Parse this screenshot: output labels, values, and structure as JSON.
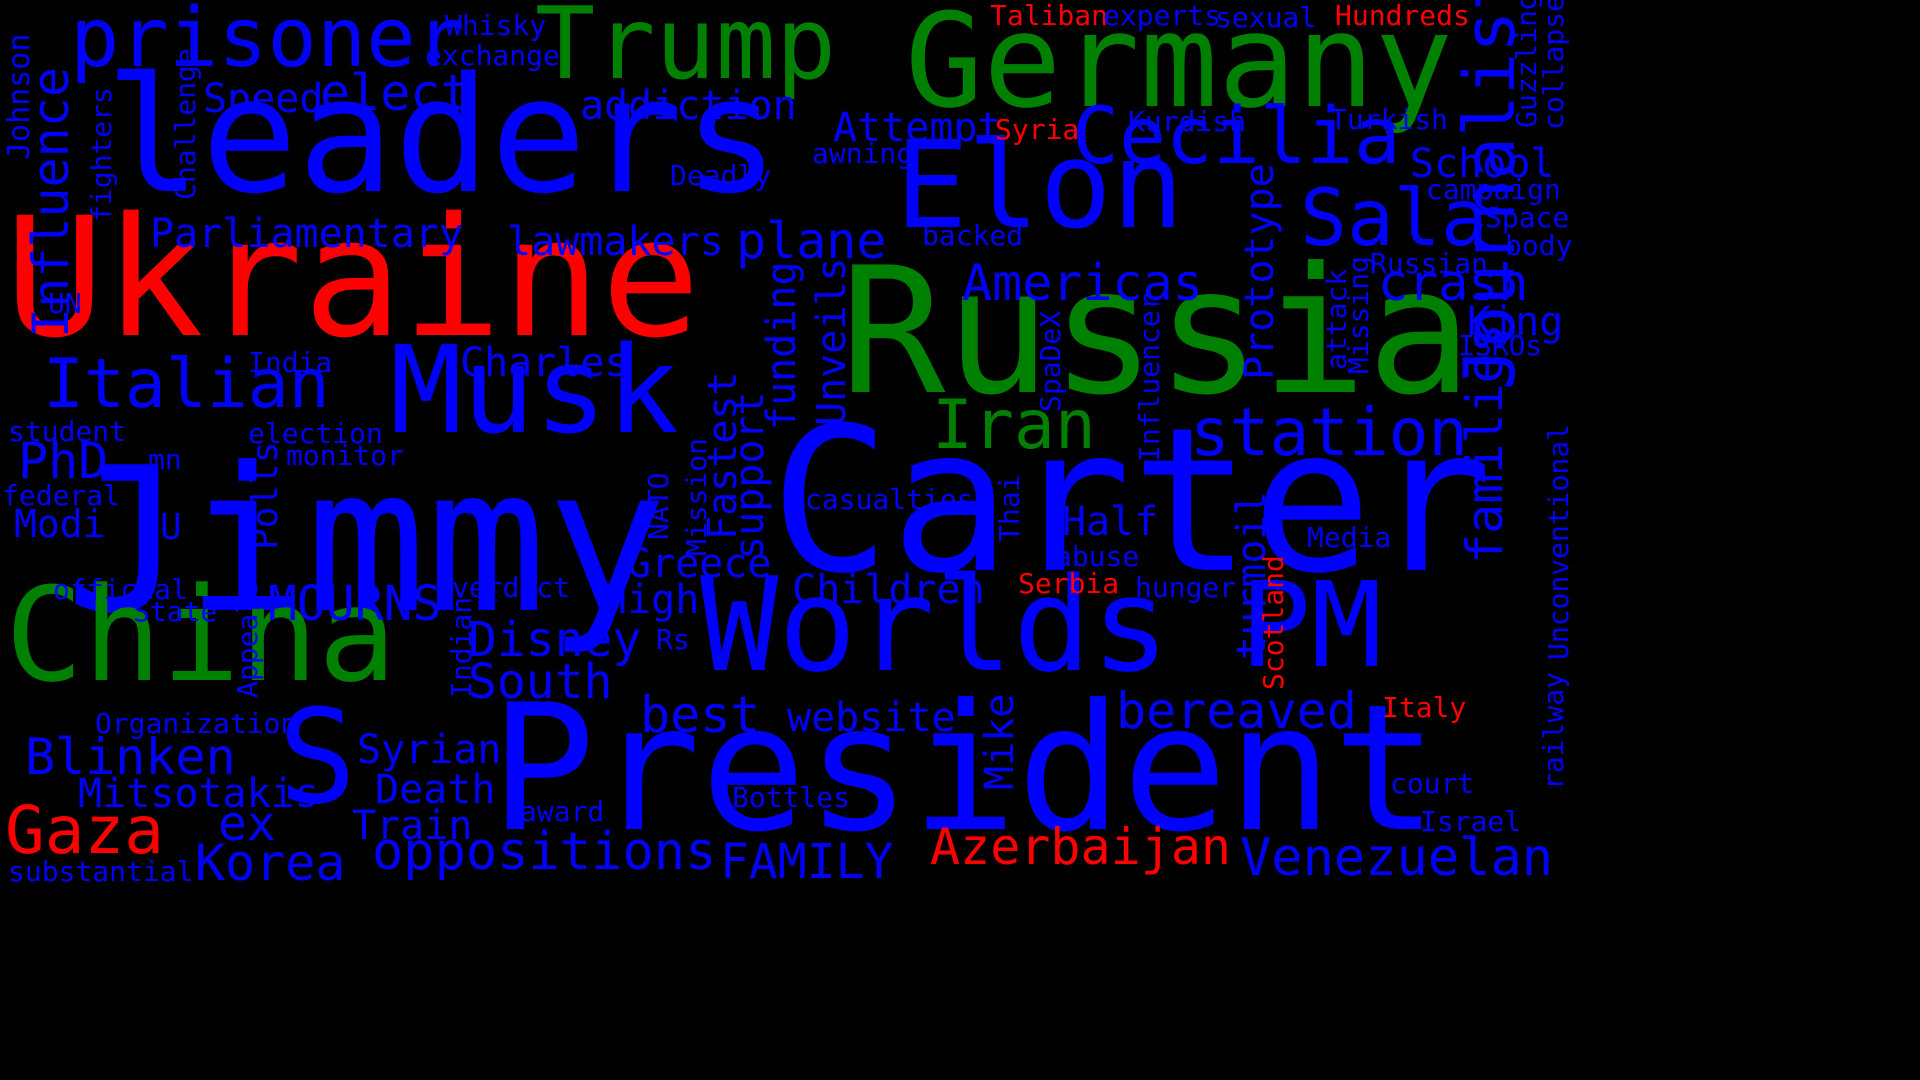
{
  "palette": {
    "blue": "#0000ff",
    "green": "#008000",
    "red": "#ff0000",
    "background": "#000000"
  },
  "words": [
    {
      "text": "Jimmy",
      "color": "blue"
    },
    {
      "text": "Carter",
      "color": "blue"
    },
    {
      "text": "President",
      "color": "blue"
    },
    {
      "text": "Russia",
      "color": "green"
    },
    {
      "text": "Ukraine",
      "color": "red"
    },
    {
      "text": "leaders",
      "color": "blue"
    },
    {
      "text": "Germany",
      "color": "green"
    },
    {
      "text": "Worlds",
      "color": "blue"
    },
    {
      "text": "China",
      "color": "green"
    },
    {
      "text": "Elon",
      "color": "blue"
    },
    {
      "text": "Musk",
      "color": "blue"
    },
    {
      "text": "PM",
      "color": "blue"
    },
    {
      "text": "S",
      "color": "blue"
    },
    {
      "text": "Trump",
      "color": "green"
    },
    {
      "text": "prisoner",
      "color": "blue"
    },
    {
      "text": "Cecilia",
      "color": "blue"
    },
    {
      "text": "Sala",
      "color": "blue"
    },
    {
      "text": "Journalist",
      "color": "blue"
    },
    {
      "text": "station",
      "color": "blue"
    },
    {
      "text": "Iran",
      "color": "green"
    },
    {
      "text": "Italian",
      "color": "blue"
    },
    {
      "text": "Gaza",
      "color": "red"
    },
    {
      "text": "Influence",
      "color": "blue"
    },
    {
      "text": "Venezuelan",
      "color": "blue"
    },
    {
      "text": "oppositions",
      "color": "blue"
    },
    {
      "text": "Azerbaijan",
      "color": "red"
    },
    {
      "text": "Americas",
      "color": "blue"
    },
    {
      "text": "crash",
      "color": "blue"
    },
    {
      "text": "plane",
      "color": "blue"
    },
    {
      "text": "Blinken",
      "color": "blue"
    },
    {
      "text": "bereaved",
      "color": "blue"
    },
    {
      "text": "families",
      "color": "blue"
    },
    {
      "text": "Korea",
      "color": "blue"
    },
    {
      "text": "FAMILY",
      "color": "blue"
    },
    {
      "text": "best",
      "color": "blue"
    },
    {
      "text": "South",
      "color": "blue"
    },
    {
      "text": "Disney",
      "color": "blue"
    },
    {
      "text": "MOURNS",
      "color": "blue"
    },
    {
      "text": "Mitsotakis",
      "color": "blue"
    },
    {
      "text": "Death",
      "color": "blue"
    },
    {
      "text": "Syrian",
      "color": "blue"
    },
    {
      "text": "Train",
      "color": "blue"
    },
    {
      "text": "ex",
      "color": "blue"
    },
    {
      "text": "elect",
      "color": "blue"
    },
    {
      "text": "Speed",
      "color": "blue"
    },
    {
      "text": "addiction",
      "color": "blue"
    },
    {
      "text": "Attempt",
      "color": "blue"
    },
    {
      "text": "Parliamentary",
      "color": "blue"
    },
    {
      "text": "lawmakers",
      "color": "blue"
    },
    {
      "text": "Charles",
      "color": "blue"
    },
    {
      "text": "PhD",
      "color": "blue"
    },
    {
      "text": "Modi",
      "color": "blue"
    },
    {
      "text": "Children",
      "color": "blue"
    },
    {
      "text": "Greece",
      "color": "blue"
    },
    {
      "text": "High",
      "color": "blue"
    },
    {
      "text": "Half",
      "color": "blue"
    },
    {
      "text": "website",
      "color": "blue"
    },
    {
      "text": "School",
      "color": "blue"
    },
    {
      "text": "King",
      "color": "blue"
    },
    {
      "text": "Prototype",
      "color": "blue"
    },
    {
      "text": "support",
      "color": "blue"
    },
    {
      "text": "Fastest",
      "color": "blue"
    },
    {
      "text": "funding",
      "color": "blue"
    },
    {
      "text": "Unveils",
      "color": "blue"
    },
    {
      "text": "Polls",
      "color": "blue"
    },
    {
      "text": "Mike",
      "color": "blue"
    },
    {
      "text": "turmoil",
      "color": "blue"
    },
    {
      "text": "U",
      "color": "blue"
    },
    {
      "text": "Johnson",
      "color": "blue"
    },
    {
      "text": "Syria",
      "color": "red"
    },
    {
      "text": "Taliban",
      "color": "red"
    },
    {
      "text": "Hundreds",
      "color": "red"
    },
    {
      "text": "Serbia",
      "color": "red"
    },
    {
      "text": "Italy",
      "color": "red"
    },
    {
      "text": "Scotland",
      "color": "red"
    },
    {
      "text": "Whisky",
      "color": "blue"
    },
    {
      "text": "exchange",
      "color": "blue"
    },
    {
      "text": "experts",
      "color": "blue"
    },
    {
      "text": "sexual",
      "color": "blue"
    },
    {
      "text": "Kurdish",
      "color": "blue"
    },
    {
      "text": "Turkish",
      "color": "blue"
    },
    {
      "text": "Guzzling",
      "color": "blue"
    },
    {
      "text": "collapse",
      "color": "blue"
    },
    {
      "text": "campaign",
      "color": "blue"
    },
    {
      "text": "Space",
      "color": "blue"
    },
    {
      "text": "body",
      "color": "blue"
    },
    {
      "text": "Russian",
      "color": "blue"
    },
    {
      "text": "ISROs",
      "color": "blue"
    },
    {
      "text": "Missing",
      "color": "blue"
    },
    {
      "text": "attack",
      "color": "blue"
    },
    {
      "text": "awning",
      "color": "blue"
    },
    {
      "text": "Deadly",
      "color": "blue"
    },
    {
      "text": "backed",
      "color": "blue"
    },
    {
      "text": "Challenge",
      "color": "blue"
    },
    {
      "text": "fighters",
      "color": "blue"
    },
    {
      "text": "UN",
      "color": "blue"
    },
    {
      "text": "India",
      "color": "blue"
    },
    {
      "text": "student",
      "color": "blue"
    },
    {
      "text": "election",
      "color": "blue"
    },
    {
      "text": "monitor",
      "color": "blue"
    },
    {
      "text": "mn",
      "color": "blue"
    },
    {
      "text": "federal",
      "color": "blue"
    },
    {
      "text": "official",
      "color": "blue"
    },
    {
      "text": "State",
      "color": "blue"
    },
    {
      "text": "Appeals",
      "color": "blue"
    },
    {
      "text": "Organization",
      "color": "blue"
    },
    {
      "text": "verdict",
      "color": "blue"
    },
    {
      "text": "Indian",
      "color": "blue"
    },
    {
      "text": "Rs",
      "color": "blue"
    },
    {
      "text": "NATO",
      "color": "blue"
    },
    {
      "text": "Mission",
      "color": "blue"
    },
    {
      "text": "casualties",
      "color": "blue"
    },
    {
      "text": "SpaDeX",
      "color": "blue"
    },
    {
      "text": "Influencer",
      "color": "blue"
    },
    {
      "text": "Thai",
      "color": "blue"
    },
    {
      "text": "abuse",
      "color": "blue"
    },
    {
      "text": "hunger",
      "color": "blue"
    },
    {
      "text": "Media",
      "color": "blue"
    },
    {
      "text": "Unconventional",
      "color": "blue"
    },
    {
      "text": "railway",
      "color": "blue"
    },
    {
      "text": "court",
      "color": "blue"
    },
    {
      "text": "Israel",
      "color": "blue"
    },
    {
      "text": "Bottles",
      "color": "blue"
    },
    {
      "text": "award",
      "color": "blue"
    },
    {
      "text": "substantial",
      "color": "blue"
    }
  ]
}
